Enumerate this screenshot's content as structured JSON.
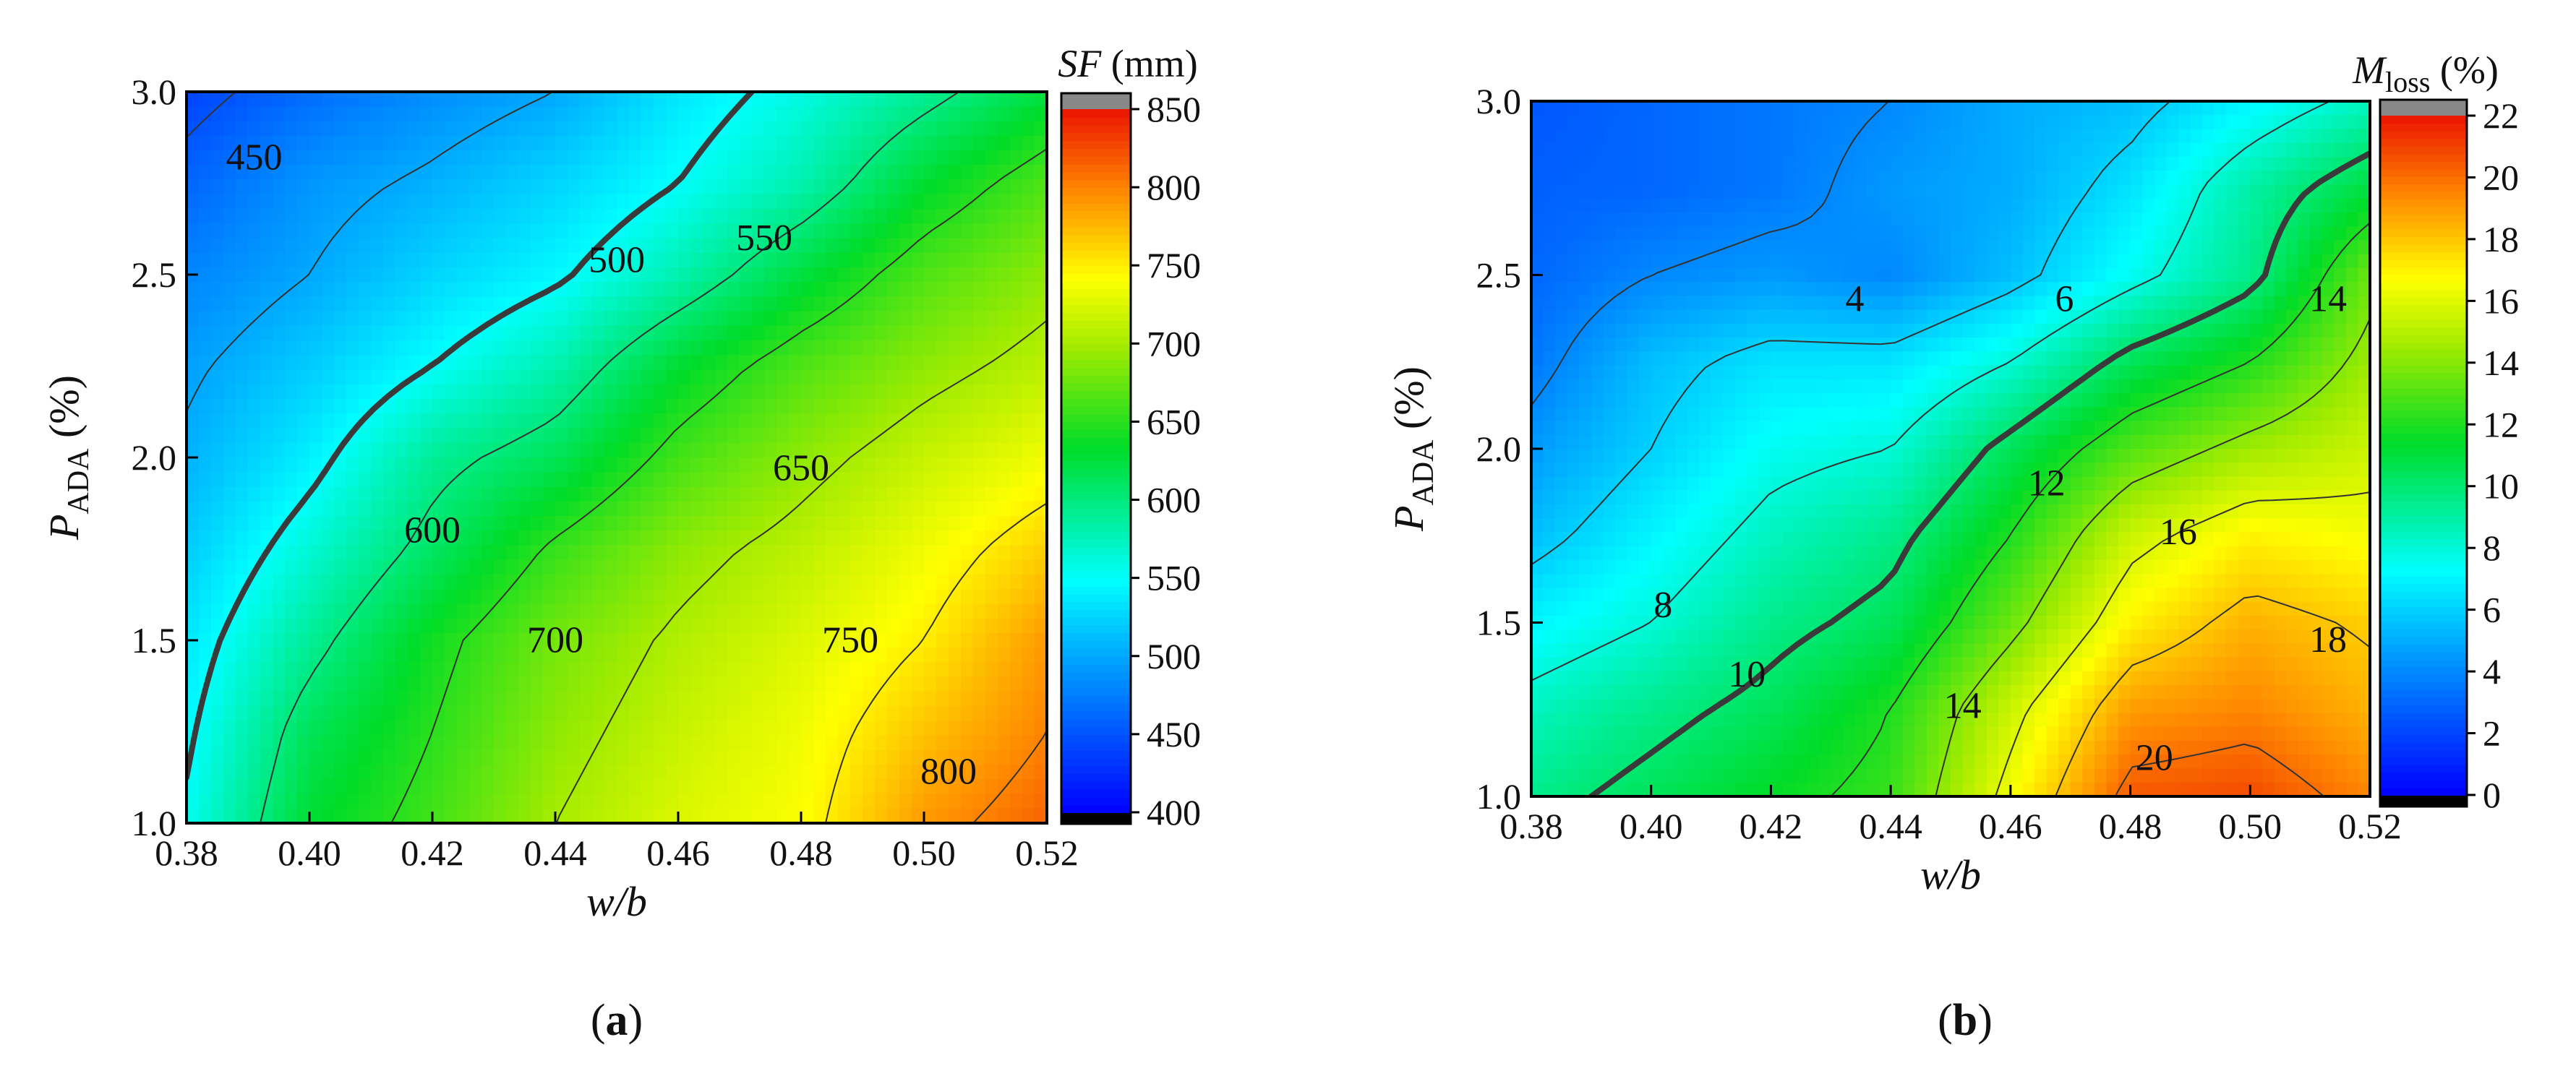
{
  "chart_data": [
    {
      "type": "heatmap",
      "subtype": "filled-contour",
      "panel_label_prefix": "(",
      "panel_label_letter": "a",
      "panel_label_suffix": ")",
      "xlabel": "w/b",
      "ylabel_main": "P",
      "ylabel_sub": "ADA",
      "ylabel_unit": " (%)",
      "colorbar_title_main": "SF",
      "colorbar_title_sub": "",
      "colorbar_title_unit": " (mm)",
      "xlim": [
        0.38,
        0.52
      ],
      "ylim": [
        1.0,
        3.0
      ],
      "x_ticks": [
        0.38,
        0.4,
        0.42,
        0.44,
        0.46,
        0.48,
        0.5,
        0.52
      ],
      "x_tick_labels": [
        "0.38",
        "0.40",
        "0.42",
        "0.44",
        "0.46",
        "0.48",
        "0.50",
        "0.52"
      ],
      "y_ticks": [
        1.0,
        1.5,
        2.0,
        2.5,
        3.0
      ],
      "y_tick_labels": [
        "1.0",
        "1.5",
        "2.0",
        "2.5",
        "3.0"
      ],
      "colorbar_range": [
        400,
        850
      ],
      "colorbar_ticks": [
        400,
        450,
        500,
        550,
        600,
        650,
        700,
        750,
        800,
        850
      ],
      "colorbar_tick_labels": [
        "400",
        "450",
        "500",
        "550",
        "600",
        "650",
        "700",
        "750",
        "800",
        "850"
      ],
      "x": [
        0.38,
        0.4,
        0.42,
        0.44,
        0.46,
        0.48,
        0.5,
        0.52
      ],
      "y": [
        1.0,
        1.25,
        1.5,
        1.75,
        2.0,
        2.25,
        2.5,
        2.75,
        3.0
      ],
      "z": [
        [
          555,
          630,
          660,
          700,
          725,
          740,
          790,
          815
        ],
        [
          545,
          615,
          650,
          690,
          715,
          735,
          770,
          800
        ],
        [
          535,
          590,
          640,
          680,
          705,
          725,
          750,
          790
        ],
        [
          520,
          565,
          610,
          655,
          690,
          710,
          735,
          765
        ],
        [
          505,
          540,
          590,
          615,
          660,
          690,
          715,
          735
        ],
        [
          495,
          520,
          550,
          580,
          630,
          665,
          690,
          710
        ],
        [
          480,
          500,
          525,
          545,
          580,
          625,
          665,
          690
        ],
        [
          460,
          490,
          505,
          525,
          550,
          580,
          630,
          665
        ],
        [
          440,
          465,
          485,
          500,
          535,
          560,
          590,
          625
        ]
      ],
      "contour_levels": [
        450,
        500,
        550,
        600,
        650,
        700,
        750,
        800
      ],
      "highlight_level": 550,
      "contour_labels": [
        {
          "text": "450",
          "x": 0.391,
          "y": 2.82
        },
        {
          "text": "500",
          "x": 0.45,
          "y": 2.54
        },
        {
          "text": "550",
          "x": 0.474,
          "y": 2.6
        },
        {
          "text": "600",
          "x": 0.42,
          "y": 1.8
        },
        {
          "text": "650",
          "x": 0.48,
          "y": 1.97
        },
        {
          "text": "700",
          "x": 0.44,
          "y": 1.5
        },
        {
          "text": "750",
          "x": 0.488,
          "y": 1.5
        },
        {
          "text": "800",
          "x": 0.504,
          "y": 1.14
        }
      ]
    },
    {
      "type": "heatmap",
      "subtype": "filled-contour",
      "panel_label_prefix": "(",
      "panel_label_letter": "b",
      "panel_label_suffix": ")",
      "xlabel": "w/b",
      "ylabel_main": "P",
      "ylabel_sub": "ADA",
      "ylabel_unit": " (%)",
      "colorbar_title_main": "M",
      "colorbar_title_sub": "loss",
      "colorbar_title_unit": " (%)",
      "xlim": [
        0.38,
        0.52
      ],
      "ylim": [
        1.0,
        3.0
      ],
      "x_ticks": [
        0.38,
        0.4,
        0.42,
        0.44,
        0.46,
        0.48,
        0.5,
        0.52
      ],
      "x_tick_labels": [
        "0.38",
        "0.40",
        "0.42",
        "0.44",
        "0.46",
        "0.48",
        "0.50",
        "0.52"
      ],
      "y_ticks": [
        1.0,
        1.5,
        2.0,
        2.5,
        3.0
      ],
      "y_tick_labels": [
        "1.0",
        "1.5",
        "2.0",
        "2.5",
        "3.0"
      ],
      "colorbar_range": [
        0,
        22
      ],
      "colorbar_ticks": [
        0,
        2,
        4,
        6,
        8,
        10,
        12,
        14,
        16,
        18,
        20,
        22
      ],
      "colorbar_tick_labels": [
        "0",
        "2",
        "4",
        "6",
        "8",
        "10",
        "12",
        "14",
        "16",
        "18",
        "20",
        "22"
      ],
      "x": [
        0.38,
        0.4,
        0.42,
        0.44,
        0.46,
        0.48,
        0.5,
        0.52
      ],
      "y": [
        1.0,
        1.25,
        1.5,
        1.75,
        2.0,
        2.25,
        2.5,
        2.75,
        3.0
      ],
      "z": [
        [
          9.5,
          10.5,
          11.5,
          12.5,
          16.5,
          20.5,
          20.8,
          19.5
        ],
        [
          8.5,
          9.5,
          10.5,
          12.0,
          15.5,
          19.0,
          19.5,
          18.5
        ],
        [
          7.0,
          8.0,
          9.5,
          10.5,
          13.5,
          17.0,
          18.5,
          17.8
        ],
        [
          5.5,
          7.0,
          8.5,
          9.5,
          12.0,
          15.5,
          17.0,
          16.5
        ],
        [
          4.5,
          6.0,
          7.5,
          8.0,
          10.5,
          13.0,
          14.5,
          15.5
        ],
        [
          3.5,
          5.5,
          6.5,
          6.5,
          8.0,
          10.5,
          12.0,
          14.5
        ],
        [
          3.0,
          4.0,
          4.5,
          4.0,
          5.5,
          7.5,
          9.5,
          13.5
        ],
        [
          2.8,
          3.0,
          3.5,
          4.5,
          5.0,
          6.5,
          9.0,
          11.0
        ],
        [
          2.5,
          3.0,
          3.5,
          4.0,
          5.0,
          5.5,
          7.0,
          8.5
        ]
      ],
      "contour_levels": [
        2,
        4,
        6,
        8,
        10,
        12,
        14,
        16,
        18,
        20
      ],
      "highlight_level": 10,
      "contour_labels": [
        {
          "text": "4",
          "x": 0.434,
          "y": 2.43
        },
        {
          "text": "6",
          "x": 0.469,
          "y": 2.43
        },
        {
          "text": "14",
          "x": 0.513,
          "y": 2.43
        },
        {
          "text": "12",
          "x": 0.466,
          "y": 1.9
        },
        {
          "text": "16",
          "x": 0.488,
          "y": 1.76
        },
        {
          "text": "8",
          "x": 0.402,
          "y": 1.55
        },
        {
          "text": "10",
          "x": 0.416,
          "y": 1.35
        },
        {
          "text": "14",
          "x": 0.452,
          "y": 1.26
        },
        {
          "text": "18",
          "x": 0.513,
          "y": 1.45
        },
        {
          "text": "20",
          "x": 0.484,
          "y": 1.11
        }
      ]
    }
  ]
}
